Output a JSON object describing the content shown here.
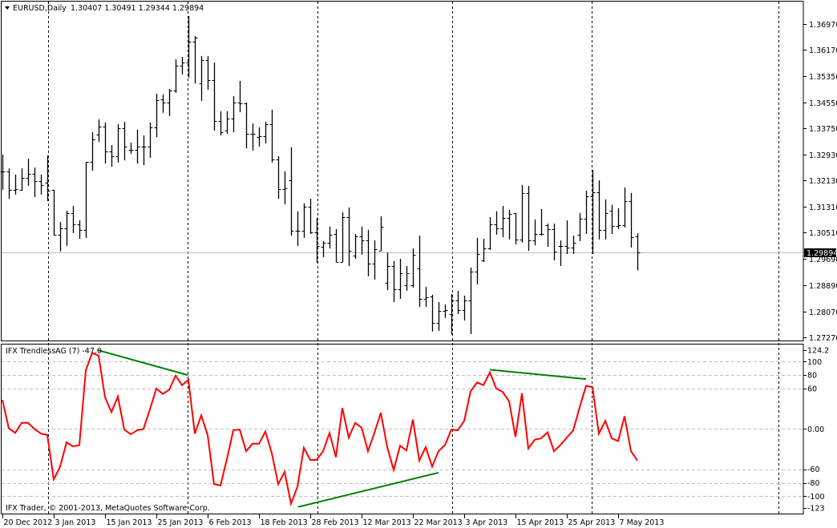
{
  "chart_data": [
    {
      "type": "ohlc",
      "symbol_title": "EURUSD,Daily",
      "header_values": "1.30407 1.30491 1.29344 1.29894",
      "dropdown_icon": "triangle-down-icon",
      "bar_color": "#000000",
      "current_price": "1.29894",
      "current_price_line_color": "#c0c0c0",
      "price_range": [
        1.2727,
        1.3697
      ],
      "price_ticks": [
        "1.36970",
        "1.36170",
        "1.35350",
        "1.34550",
        "1.33750",
        "1.32930",
        "1.32130",
        "1.31310",
        "1.30510",
        "1.29690",
        "1.28890",
        "1.28070",
        "1.27270"
      ],
      "ohlc": [
        [
          1.3241,
          1.3293,
          1.3184,
          1.3241
        ],
        [
          1.3241,
          1.325,
          1.3156,
          1.3184
        ],
        [
          1.3184,
          1.3231,
          1.3169,
          1.3186
        ],
        [
          1.3184,
          1.325,
          1.3181,
          1.3221
        ],
        [
          1.3221,
          1.328,
          1.3196,
          1.3233
        ],
        [
          1.3233,
          1.3253,
          1.3161,
          1.3211
        ],
        [
          1.3211,
          1.3231,
          1.3169,
          1.3199
        ],
        [
          1.3206,
          1.329,
          1.3149,
          1.3181
        ],
        [
          1.3184,
          1.3184,
          1.3042,
          1.3045
        ],
        [
          1.3045,
          1.3084,
          1.2993,
          1.3065
        ],
        [
          1.3065,
          1.3119,
          1.301,
          1.3112
        ],
        [
          1.3112,
          1.3134,
          1.305,
          1.3077
        ],
        [
          1.3077,
          1.3089,
          1.3032,
          1.306
        ],
        [
          1.306,
          1.327,
          1.3035,
          1.327
        ],
        [
          1.327,
          1.3362,
          1.3243,
          1.334
        ],
        [
          1.3355,
          1.3402,
          1.3332,
          1.338
        ],
        [
          1.338,
          1.3392,
          1.3265,
          1.3303
        ],
        [
          1.3303,
          1.3322,
          1.3255,
          1.3288
        ],
        [
          1.3288,
          1.3387,
          1.3268,
          1.3375
        ],
        [
          1.3375,
          1.3394,
          1.3275,
          1.3317
        ],
        [
          1.3307,
          1.333,
          1.3295,
          1.3307
        ],
        [
          1.3307,
          1.337,
          1.3265,
          1.3317
        ],
        [
          1.3317,
          1.3352,
          1.326,
          1.3317
        ],
        [
          1.3317,
          1.3392,
          1.3283,
          1.3377
        ],
        [
          1.3377,
          1.3481,
          1.3347,
          1.3461
        ],
        [
          1.3464,
          1.3479,
          1.3422,
          1.3454
        ],
        [
          1.3454,
          1.3496,
          1.3412,
          1.3491
        ],
        [
          1.3491,
          1.3588,
          1.3484,
          1.3568
        ],
        [
          1.3568,
          1.3595,
          1.3541,
          1.3578
        ],
        [
          1.3578,
          1.3722,
          1.3531,
          1.3642
        ],
        [
          1.3642,
          1.366,
          1.3513,
          1.3655
        ],
        [
          1.3513,
          1.3598,
          1.3459,
          1.3585
        ],
        [
          1.3585,
          1.3598,
          1.3494,
          1.3523
        ],
        [
          1.3523,
          1.3578,
          1.3367,
          1.3397
        ],
        [
          1.3397,
          1.3427,
          1.3352,
          1.3362
        ],
        [
          1.3367,
          1.3427,
          1.3357,
          1.3404
        ],
        [
          1.3404,
          1.3474,
          1.3362,
          1.3454
        ],
        [
          1.3454,
          1.3521,
          1.3424,
          1.3451
        ],
        [
          1.3451,
          1.3454,
          1.3312,
          1.3357
        ],
        [
          1.3357,
          1.3389,
          1.3305,
          1.3357
        ],
        [
          1.3347,
          1.3377,
          1.3317,
          1.335
        ],
        [
          1.335,
          1.3394,
          1.3327,
          1.3387
        ],
        [
          1.3387,
          1.3432,
          1.3268,
          1.3278
        ],
        [
          1.3278,
          1.3288,
          1.3156,
          1.3186
        ],
        [
          1.3186,
          1.3241,
          1.3139,
          1.3189
        ],
        [
          1.3213,
          1.3315,
          1.3042,
          1.3057
        ],
        [
          1.3057,
          1.3117,
          1.301,
          1.3057
        ],
        [
          1.3057,
          1.3142,
          1.3035,
          1.3132
        ],
        [
          1.3132,
          1.3156,
          1.3047,
          1.3052
        ],
        [
          1.3052,
          1.3097,
          1.2958,
          1.301
        ],
        [
          1.3007,
          1.3025,
          1.2975,
          1.302
        ],
        [
          1.302,
          1.307,
          1.3002,
          1.3045
        ],
        [
          1.3047,
          1.3062,
          1.296,
          1.296
        ],
        [
          1.296,
          1.3114,
          1.296,
          1.3099
        ],
        [
          1.3099,
          1.3129,
          1.2948,
          1.2995
        ],
        [
          1.298,
          1.3047,
          1.297,
          1.304
        ],
        [
          1.304,
          1.307,
          1.2983,
          1.3027
        ],
        [
          1.3027,
          1.306,
          1.2916,
          1.2956
        ],
        [
          1.2956,
          1.3027,
          1.2906,
          1.3
        ],
        [
          1.2995,
          1.3102,
          1.2995,
          1.307
        ],
        [
          1.2896,
          1.299,
          1.2873,
          1.2948
        ],
        [
          1.2948,
          1.2963,
          1.2836,
          1.2876
        ],
        [
          1.2876,
          1.297,
          1.2846,
          1.2925
        ],
        [
          1.2888,
          1.2948,
          1.2871,
          1.2925
        ],
        [
          1.2888,
          1.3002,
          1.2881,
          1.2983
        ],
        [
          1.294,
          1.3042,
          1.2821,
          1.2846
        ],
        [
          1.2846,
          1.2883,
          1.2821,
          1.2851
        ],
        [
          1.2854,
          1.2859,
          1.2745,
          1.2772
        ],
        [
          1.2772,
          1.2836,
          1.2747,
          1.2809
        ],
        [
          1.2809,
          1.2829,
          1.2787,
          1.2811
        ],
        [
          1.2799,
          1.2861,
          1.2735,
          1.2841
        ],
        [
          1.2841,
          1.2871,
          1.2799,
          1.2811
        ],
        [
          1.2811,
          1.2856,
          1.2779,
          1.2841
        ],
        [
          1.2841,
          1.2943,
          1.2737,
          1.293
        ],
        [
          1.293,
          1.3035,
          1.2891,
          1.2985
        ],
        [
          1.2965,
          1.3032,
          1.296,
          1.3002
        ],
        [
          1.3002,
          1.3099,
          1.2998,
          1.3077
        ],
        [
          1.3077,
          1.3117,
          1.3045,
          1.3065
        ],
        [
          1.3065,
          1.3134,
          1.3037,
          1.3097
        ],
        [
          1.3097,
          1.3122,
          1.303,
          1.3109
        ],
        [
          1.3112,
          1.3112,
          1.3015,
          1.303
        ],
        [
          1.303,
          1.3199,
          1.302,
          1.3174
        ],
        [
          1.3174,
          1.3196,
          1.2995,
          1.3027
        ],
        [
          1.3027,
          1.3092,
          1.3012,
          1.3047
        ],
        [
          1.3047,
          1.3124,
          1.3042,
          1.3047
        ],
        [
          1.3074,
          1.3079,
          1.3007,
          1.3062
        ],
        [
          1.3062,
          1.3079,
          1.2965,
          1.2993
        ],
        [
          1.301,
          1.3027,
          1.2948,
          1.301
        ],
        [
          1.301,
          1.3089,
          1.2985,
          1.3005
        ],
        [
          1.3005,
          1.3042,
          1.2985,
          1.302
        ],
        [
          1.3045,
          1.3112,
          1.3025,
          1.3094
        ],
        [
          1.3094,
          1.3181,
          1.3047,
          1.3164
        ],
        [
          1.3164,
          1.3245,
          1.2985,
          1.3176
        ],
        [
          1.3176,
          1.3213,
          1.303,
          1.306
        ],
        [
          1.306,
          1.3154,
          1.303,
          1.3112
        ],
        [
          1.3119,
          1.3137,
          1.3047,
          1.3072
        ],
        [
          1.3072,
          1.3127,
          1.3062,
          1.3074
        ],
        [
          1.3074,
          1.3191,
          1.3067,
          1.3149
        ],
        [
          1.3149,
          1.3174,
          1.3005,
          1.3037
        ],
        [
          1.30407,
          1.30491,
          1.29344,
          1.29894
        ]
      ],
      "date_labels": [
        {
          "label": "20 Dec 2012",
          "bar": 0
        },
        {
          "label": "3 Jan 2013",
          "bar": 8
        },
        {
          "label": "15 Jan 2013",
          "bar": 16
        },
        {
          "label": "25 Jan 2013",
          "bar": 24
        },
        {
          "label": "6 Feb 2013",
          "bar": 32
        },
        {
          "label": "18 Feb 2013",
          "bar": 40
        },
        {
          "label": "28 Feb 2013",
          "bar": 48
        },
        {
          "label": "12 Mar 2013",
          "bar": 56
        },
        {
          "label": "22 Mar 2013",
          "bar": 64
        },
        {
          "label": "3 Apr 2013",
          "bar": 72
        },
        {
          "label": "15 Apr 2013",
          "bar": 80
        },
        {
          "label": "25 Apr 2013",
          "bar": 88
        },
        {
          "label": "7 May 2013",
          "bar": 96
        }
      ],
      "period_separators_bar": [
        7.1,
        28.9,
        49.1,
        70.1,
        91.9,
        121
      ]
    },
    {
      "type": "line",
      "indicator_title": "IFX TrendlessAG (7) -47.0",
      "line_color": "#ff0000",
      "trendline_color": "#008000",
      "range": [
        -123,
        124.2
      ],
      "ticks": [
        "124.2",
        "100",
        "80",
        "60",
        "0.00",
        "-60",
        "-80",
        "-100",
        "-123"
      ],
      "gridlines": [
        100,
        80,
        60,
        0,
        -60,
        -80,
        -100
      ],
      "values": [
        43,
        1,
        -6,
        9,
        9,
        0,
        -7,
        -9,
        -75,
        -56,
        -20,
        -26,
        -24,
        87,
        113,
        109,
        47,
        25,
        48,
        -1,
        -8,
        -2,
        0,
        29,
        60,
        52,
        58,
        79,
        65,
        73,
        -7,
        20,
        -9,
        -82,
        -84,
        -45,
        -2,
        -1,
        -33,
        -22,
        -22,
        -4,
        -36,
        -82,
        -64,
        -111,
        -86,
        -28,
        -46,
        -46,
        -33,
        -6,
        -42,
        31,
        -13,
        9,
        2,
        -33,
        -6,
        24,
        -27,
        -61,
        -25,
        -32,
        14,
        -47,
        -27,
        -56,
        -33,
        -24,
        -1,
        -2,
        12,
        56,
        69,
        65,
        84,
        60,
        55,
        41,
        -12,
        53,
        -29,
        -16,
        -14,
        -5,
        -33,
        -24,
        -13,
        -2,
        32,
        64,
        62,
        -7,
        12,
        -14,
        -18,
        19,
        -33,
        -47
      ],
      "trendlines": [
        {
          "from": {
            "bar": 14.9,
            "value": 117
          },
          "to": {
            "bar": 28.9,
            "value": 80
          }
        },
        {
          "from": {
            "bar": 46.1,
            "value": -116
          },
          "to": {
            "bar": 68,
            "value": -65
          }
        },
        {
          "from": {
            "bar": 76,
            "value": 88
          },
          "to": {
            "bar": 91,
            "value": 74
          }
        }
      ]
    }
  ],
  "footer": "IFX Trader, © 2001-2013, MetaQuotes Software Corp."
}
